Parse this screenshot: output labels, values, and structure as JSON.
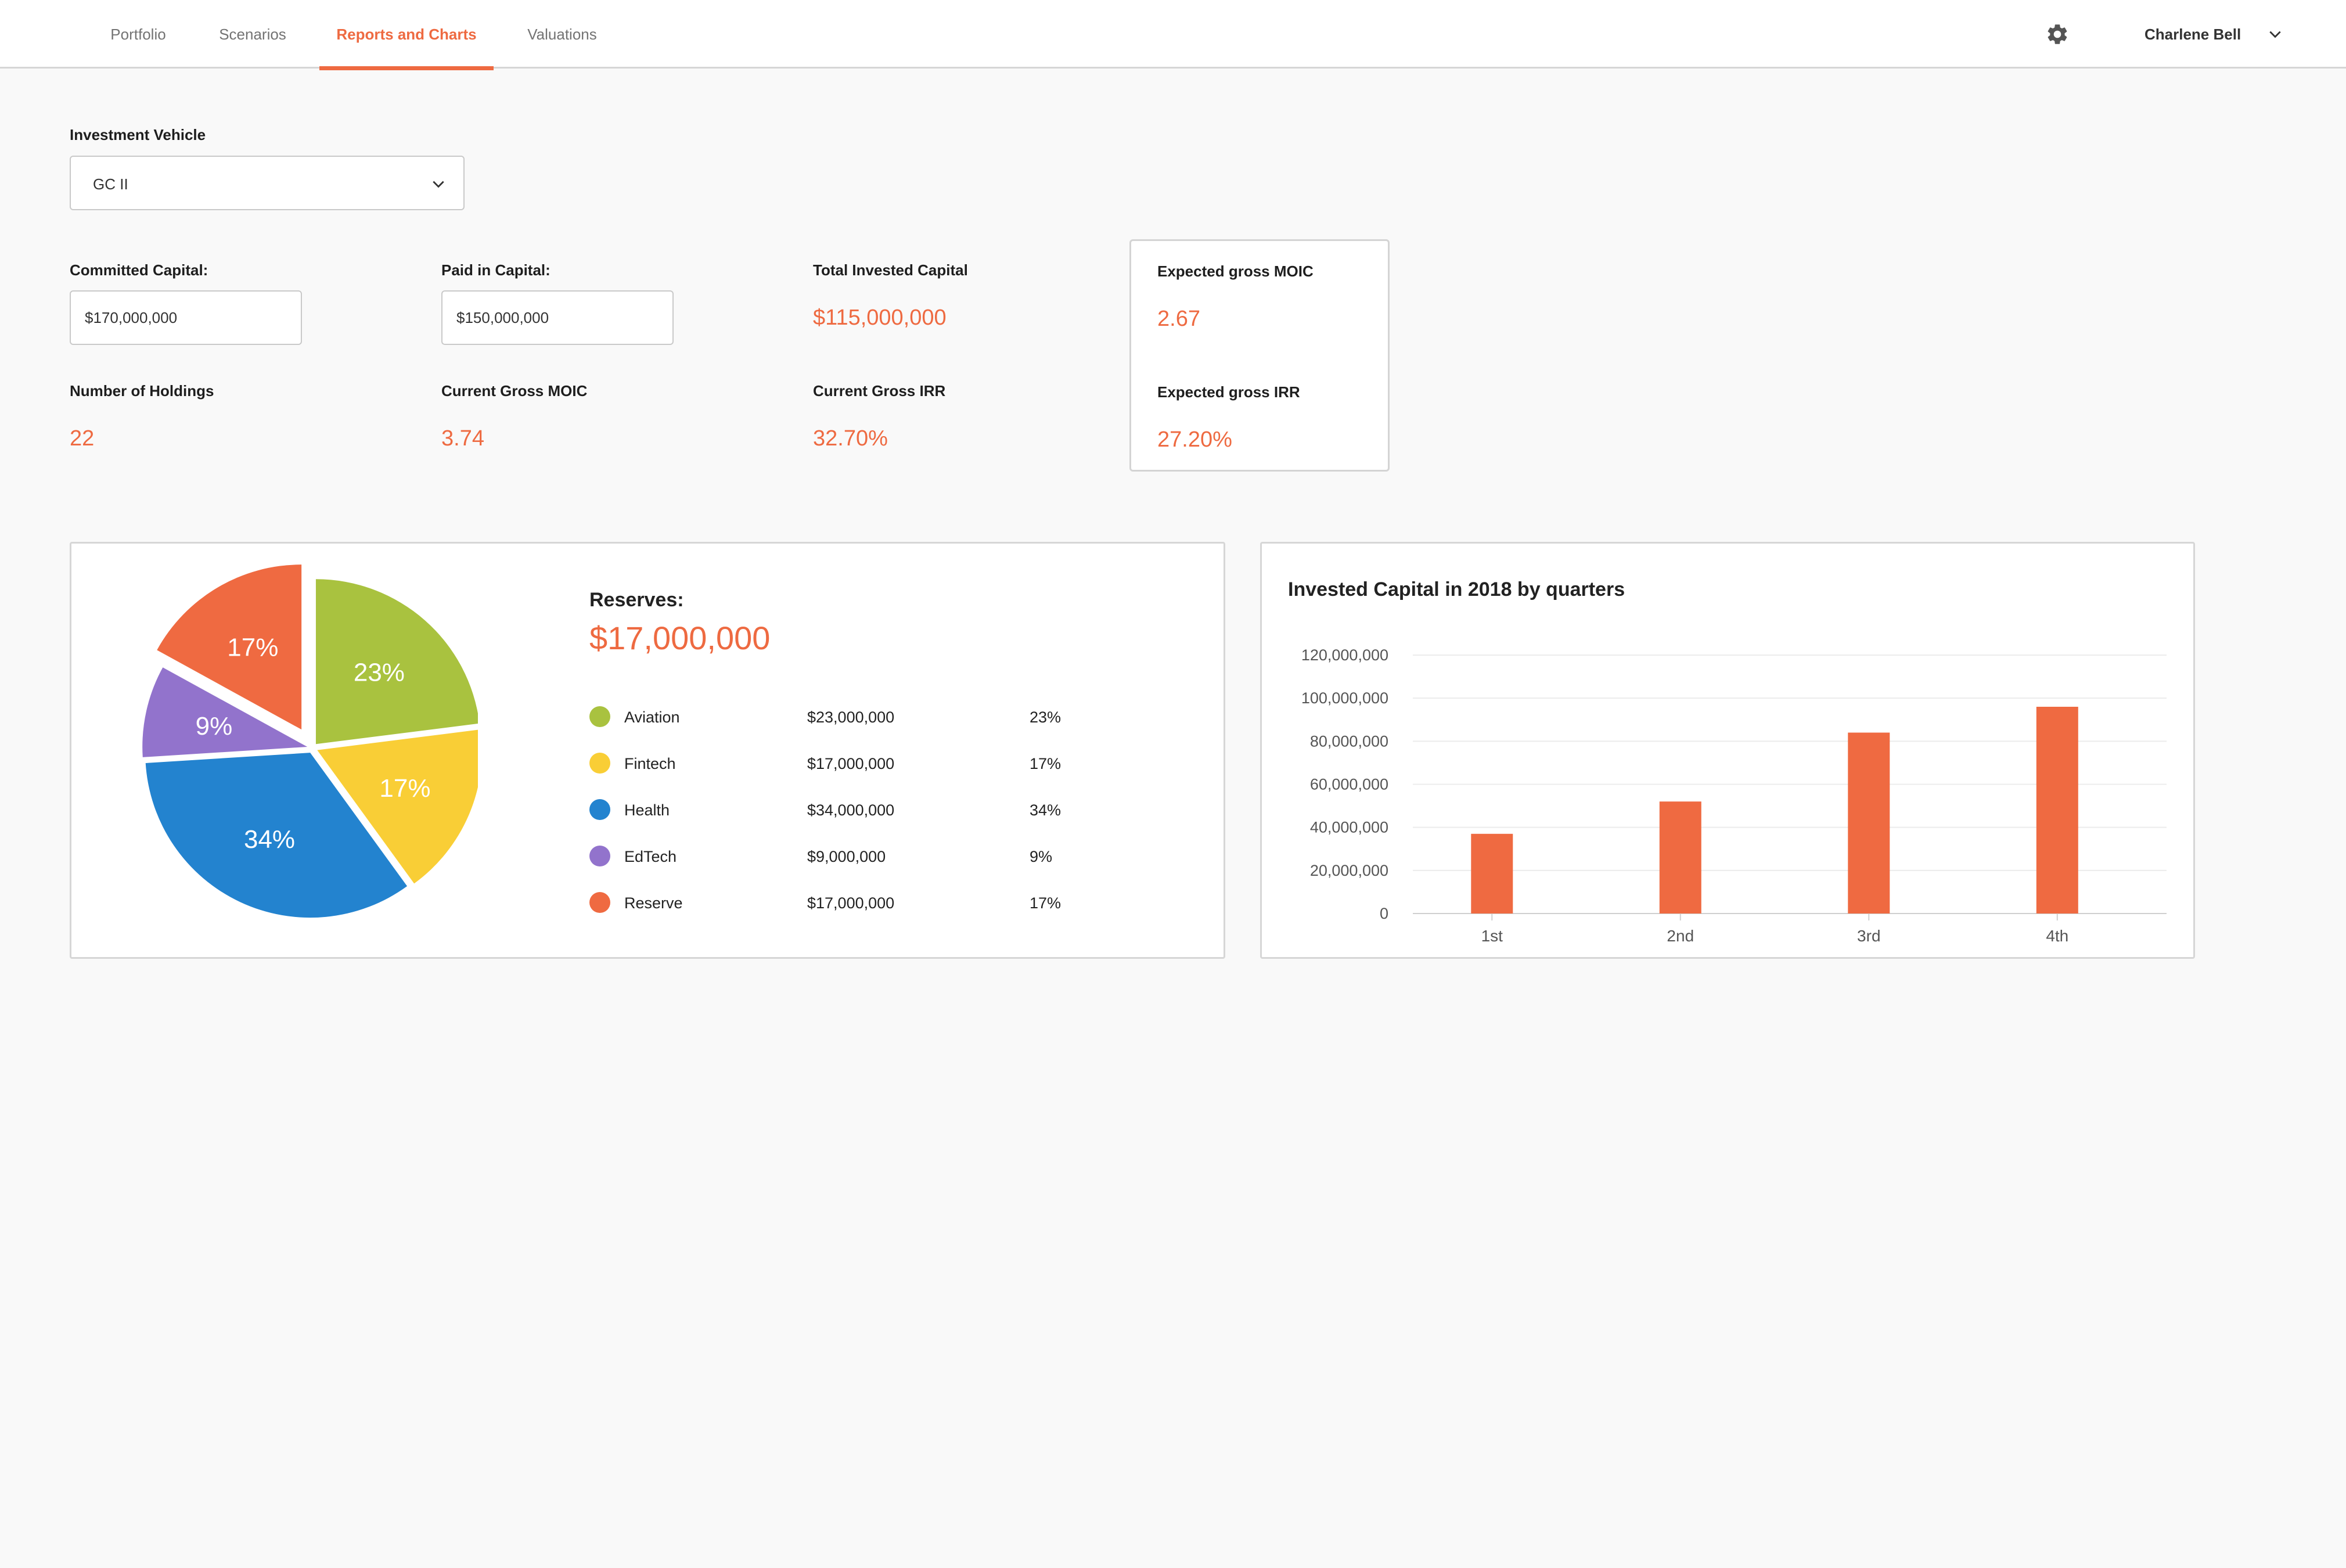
{
  "nav": {
    "tabs": [
      {
        "label": "Portfolio"
      },
      {
        "label": "Scenarios"
      },
      {
        "label": "Reports and Charts"
      },
      {
        "label": "Valuations"
      }
    ],
    "active_tab": "Reports and Charts",
    "user_name": "Charlene Bell",
    "icons": {
      "settings": "gear-icon",
      "user_menu": "chevron-down-icon"
    }
  },
  "filter": {
    "label": "Investment Vehicle",
    "value": "GC II"
  },
  "metrics": {
    "committed_capital": {
      "label": "Committed Capital:",
      "value": "$170,000,000"
    },
    "paid_in_capital": {
      "label": "Paid in Capital:",
      "value": "$150,000,000"
    },
    "total_invested_capital": {
      "label": "Total Invested Capital",
      "value": "$115,000,000"
    },
    "expected_gross_moic": {
      "label": "Expected gross MOIC",
      "value": "2.67"
    },
    "number_of_holdings": {
      "label": "Number of Holdings",
      "value": "22"
    },
    "current_gross_moic": {
      "label": "Current Gross MOIC",
      "value": "3.74"
    },
    "current_gross_irr": {
      "label": "Current Gross IRR",
      "value": "32.70%"
    },
    "expected_gross_irr": {
      "label": "Expected gross IRR",
      "value": "27.20%"
    }
  },
  "reserves": {
    "title": "Reserves:",
    "amount": "$17,000,000",
    "legend": [
      {
        "name": "Aviation",
        "amount": "$23,000,000",
        "pct": "23%"
      },
      {
        "name": "Fintech",
        "amount": "$17,000,000",
        "pct": "17%"
      },
      {
        "name": "Health",
        "amount": "$34,000,000",
        "pct": "34%"
      },
      {
        "name": "EdTech",
        "amount": "$9,000,000",
        "pct": "9%"
      },
      {
        "name": "Reserve",
        "amount": "$17,000,000",
        "pct": "17%"
      }
    ]
  },
  "chart_data": [
    {
      "type": "pie",
      "title": "",
      "categories": [
        "Aviation",
        "Fintech",
        "Health",
        "EdTech",
        "Reserve"
      ],
      "values": [
        23,
        17,
        34,
        9,
        17
      ],
      "labels": [
        "23%",
        "17%",
        "34%",
        "9%",
        "17%"
      ],
      "colors": [
        "#a9c23f",
        "#f9ce36",
        "#2383cf",
        "#9273cc",
        "#ef6a41"
      ],
      "exploded": "Reserve"
    },
    {
      "type": "bar",
      "title": "Invested Capital in 2018 by quarters",
      "xlabel": "",
      "ylabel": "",
      "categories": [
        "1st",
        "2nd",
        "3rd",
        "4th"
      ],
      "values": [
        37000000,
        52000000,
        84000000,
        96000000
      ],
      "ylim": [
        0,
        120000000
      ],
      "yticks": [
        "0",
        "20,000,000",
        "40,000,000",
        "60,000,000",
        "80,000,000",
        "100,000,000",
        "120,000,000"
      ],
      "grid": true,
      "bar_color": "#ef6a41"
    }
  ]
}
